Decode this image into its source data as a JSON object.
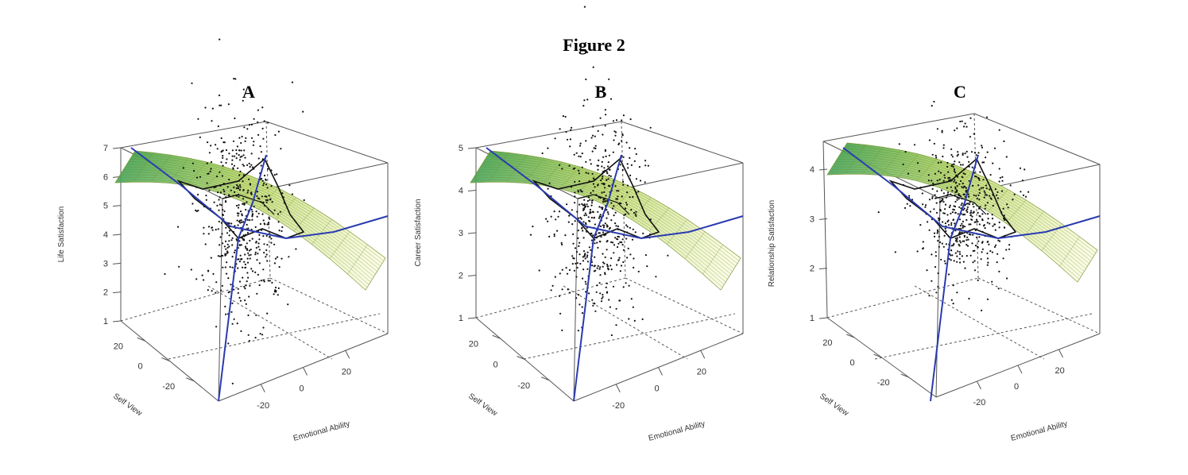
{
  "figure": {
    "title": "Figure 2"
  },
  "colors": {
    "regression_line": "#2a3bb0",
    "roc_contour": "#111111",
    "surface_low": "#2f9a4a",
    "surface_mid": "#b8d65a",
    "surface_high": "#fbfbd2",
    "points": "#111111",
    "box": "#555555"
  },
  "chart_data": [
    {
      "panel": "A",
      "type": "scatter",
      "zlabel": "Life Satisfaction",
      "xlabel": "Emotional Ability",
      "ylabel": "Self View",
      "zticks": [
        "1",
        "2",
        "3",
        "4",
        "5",
        "6",
        "7"
      ],
      "xticks": [
        "-20",
        "0",
        "20"
      ],
      "yticks": [
        "-20",
        "0",
        "20"
      ],
      "zlim": [
        1,
        7
      ],
      "surface": "fitted quadratic response surface"
    },
    {
      "panel": "B",
      "type": "scatter",
      "zlabel": "Career Satisfaction",
      "xlabel": "Emotional Ability",
      "ylabel": "Self View",
      "zticks": [
        "1",
        "2",
        "3",
        "4",
        "5"
      ],
      "xticks": [
        "-20",
        "0",
        "20"
      ],
      "yticks": [
        "-20",
        "0",
        "20"
      ],
      "zlim": [
        1,
        5
      ],
      "surface": "fitted quadratic response surface"
    },
    {
      "panel": "C",
      "type": "scatter",
      "zlabel": "Relationship Satisfaction",
      "xlabel": "Emotional Ability",
      "ylabel": "Self View",
      "zticks": [
        "1",
        "2",
        "3",
        "4"
      ],
      "xticks": [
        "-20",
        "0",
        "20"
      ],
      "yticks": [
        "-20",
        "0",
        "20"
      ],
      "zlim": [
        1,
        4
      ],
      "surface": "fitted quadratic response surface"
    }
  ]
}
